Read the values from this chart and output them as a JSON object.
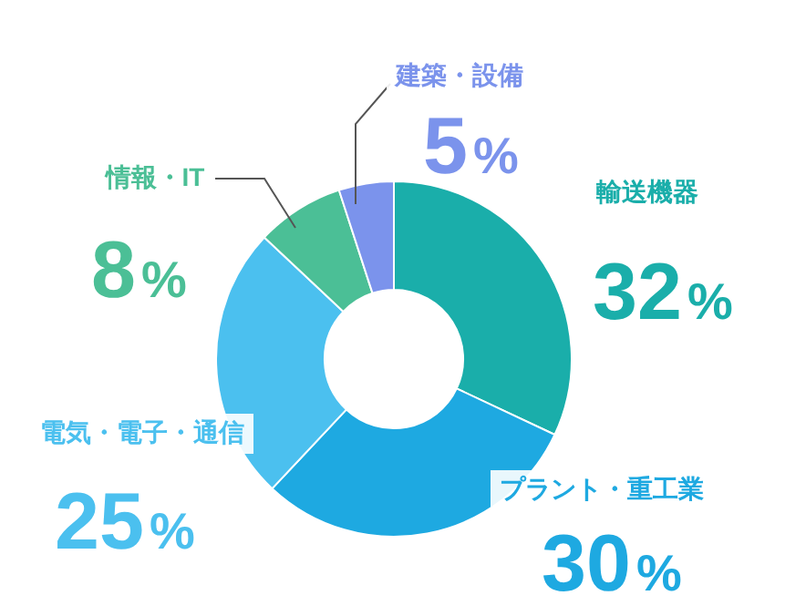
{
  "chart_data": {
    "type": "donut",
    "categories": [
      "輸送機器",
      "プラント・重工業",
      "電気・電子・通信",
      "情報・IT",
      "建築・設備"
    ],
    "values": [
      32,
      30,
      25,
      8,
      5
    ],
    "colors": [
      "#1aaeaa",
      "#1ea9e1",
      "#4bc0ef",
      "#4bbf96",
      "#7b93ec"
    ],
    "value_labels": [
      "32%",
      "30%",
      "25%",
      "8%",
      "5%"
    ],
    "legend": false
  }
}
